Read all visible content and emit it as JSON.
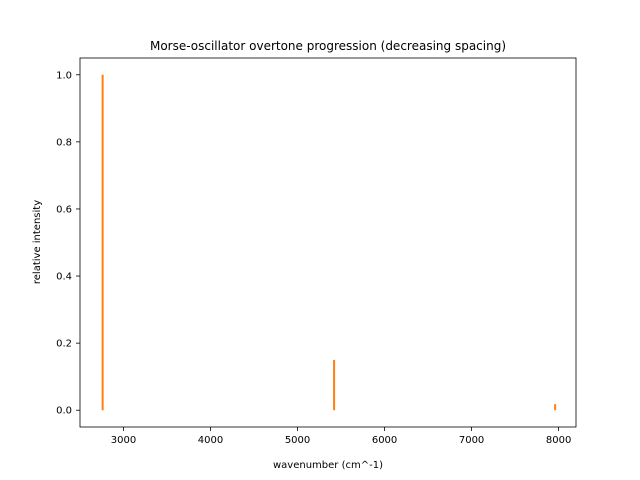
{
  "chart_data": {
    "type": "bar",
    "title": "Morse-oscillator overtone progression (decreasing spacing)",
    "xlabel": "wavenumber (cm^-1)",
    "ylabel": "relative intensity",
    "xlim": [
      2500,
      8200
    ],
    "ylim": [
      -0.05,
      1.05
    ],
    "xticks": [
      3000,
      4000,
      5000,
      6000,
      7000,
      8000
    ],
    "yticks": [
      0.0,
      0.2,
      0.4,
      0.6,
      0.8,
      1.0
    ],
    "xtick_labels": [
      "3000",
      "4000",
      "5000",
      "6000",
      "7000",
      "8000"
    ],
    "ytick_labels": [
      "0.0",
      "0.2",
      "0.4",
      "0.6",
      "0.8",
      "1.0"
    ],
    "series": [
      {
        "color": "#ff7f0e",
        "points": [
          {
            "x": 2760,
            "y": 1.0
          },
          {
            "x": 5420,
            "y": 0.15
          },
          {
            "x": 7960,
            "y": 0.018
          }
        ]
      }
    ],
    "grid": false,
    "legend": "none"
  }
}
